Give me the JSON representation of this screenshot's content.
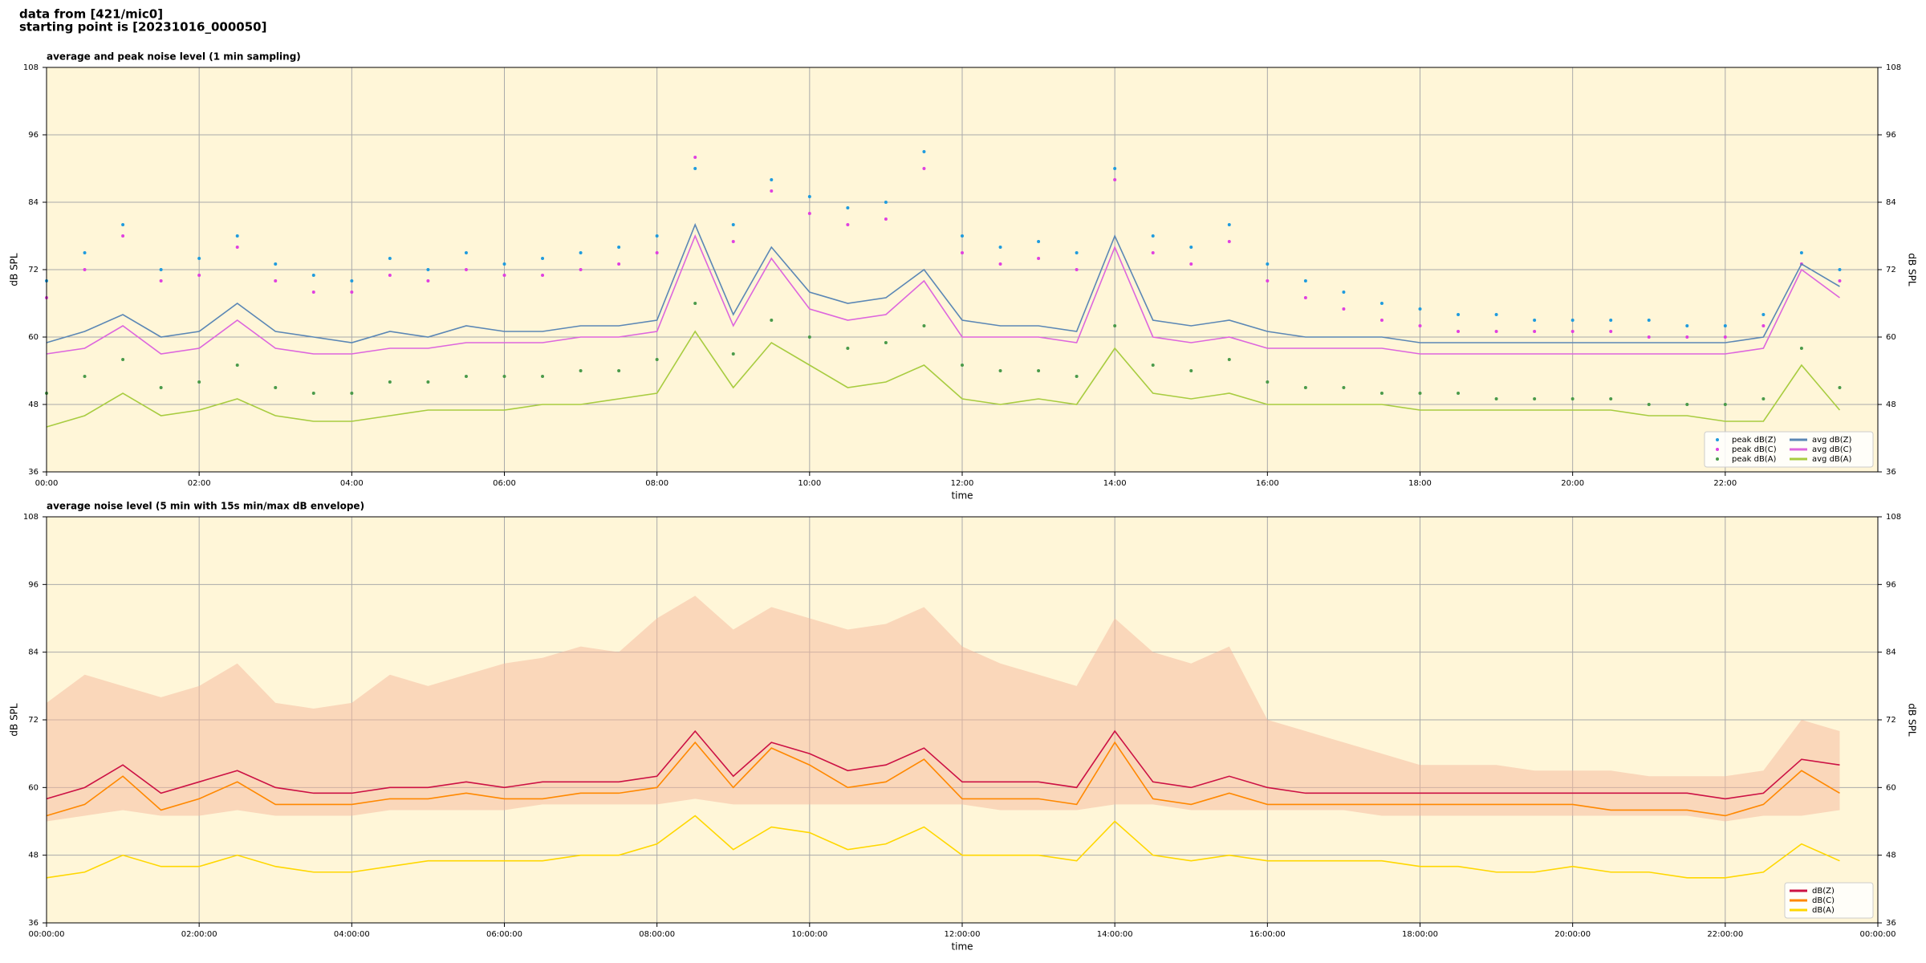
{
  "header": {
    "line1": "data from [421/mic0]",
    "line2": "starting point is [20231016_000050]"
  },
  "chart_data": [
    {
      "type": "line",
      "title": "average and peak noise level (1 min sampling)",
      "xlabel": "time",
      "ylabel": "dB SPL",
      "legend": "lower right",
      "grid": true,
      "background": "#fff6d8",
      "xlim": [
        0,
        24
      ],
      "ylim": [
        36,
        108
      ],
      "yticks": [
        36,
        48,
        60,
        72,
        84,
        96,
        108
      ],
      "xticks": [
        {
          "value": 0,
          "label": "00:00"
        },
        {
          "value": 2,
          "label": "02:00"
        },
        {
          "value": 4,
          "label": "04:00"
        },
        {
          "value": 6,
          "label": "06:00"
        },
        {
          "value": 8,
          "label": "08:00"
        },
        {
          "value": 10,
          "label": "10:00"
        },
        {
          "value": 12,
          "label": "12:00"
        },
        {
          "value": 14,
          "label": "14:00"
        },
        {
          "value": 16,
          "label": "16:00"
        },
        {
          "value": 18,
          "label": "18:00"
        },
        {
          "value": 20,
          "label": "20:00"
        },
        {
          "value": 22,
          "label": "22:00"
        }
      ],
      "x": [
        0,
        0.5,
        1,
        1.5,
        2,
        2.5,
        3,
        3.5,
        4,
        4.5,
        5,
        5.5,
        6,
        6.5,
        7,
        7.5,
        8,
        8.5,
        9,
        9.5,
        10,
        10.5,
        11,
        11.5,
        12,
        12.5,
        13,
        13.5,
        14,
        14.5,
        15,
        15.5,
        16,
        16.5,
        17,
        17.5,
        18,
        18.5,
        19,
        19.5,
        20,
        20.5,
        21,
        21.5,
        22,
        22.5,
        23,
        23.5
      ],
      "series": [
        {
          "name": "peak dB(Z)",
          "kind": "scatter",
          "color": "#1f9bde",
          "values": [
            70,
            75,
            80,
            72,
            74,
            78,
            73,
            71,
            70,
            74,
            72,
            75,
            73,
            74,
            75,
            76,
            78,
            90,
            80,
            88,
            85,
            83,
            84,
            93,
            78,
            76,
            77,
            75,
            90,
            78,
            76,
            80,
            73,
            70,
            68,
            66,
            65,
            64,
            64,
            63,
            63,
            63,
            63,
            62,
            62,
            64,
            75,
            72
          ]
        },
        {
          "name": "peak dB(C)",
          "kind": "scatter",
          "color": "#e040e0",
          "values": [
            67,
            72,
            78,
            70,
            71,
            76,
            70,
            68,
            68,
            71,
            70,
            72,
            71,
            71,
            72,
            73,
            75,
            92,
            77,
            86,
            82,
            80,
            81,
            90,
            75,
            73,
            74,
            72,
            88,
            75,
            73,
            77,
            70,
            67,
            65,
            63,
            62,
            61,
            61,
            61,
            61,
            61,
            60,
            60,
            60,
            62,
            73,
            70
          ]
        },
        {
          "name": "peak dB(A)",
          "kind": "scatter",
          "color": "#4a9a4a",
          "values": [
            50,
            53,
            56,
            51,
            52,
            55,
            51,
            50,
            50,
            52,
            52,
            53,
            53,
            53,
            54,
            54,
            56,
            66,
            57,
            63,
            60,
            58,
            59,
            62,
            55,
            54,
            54,
            53,
            62,
            55,
            54,
            56,
            52,
            51,
            51,
            50,
            50,
            50,
            49,
            49,
            49,
            49,
            48,
            48,
            48,
            49,
            58,
            51
          ]
        },
        {
          "name": "avg dB(Z)",
          "kind": "line",
          "color": "#5b87b5",
          "values": [
            59,
            61,
            64,
            60,
            61,
            66,
            61,
            60,
            59,
            61,
            60,
            62,
            61,
            61,
            62,
            62,
            63,
            80,
            64,
            76,
            68,
            66,
            67,
            72,
            63,
            62,
            62,
            61,
            78,
            63,
            62,
            63,
            61,
            60,
            60,
            60,
            59,
            59,
            59,
            59,
            59,
            59,
            59,
            59,
            59,
            60,
            73,
            69
          ]
        },
        {
          "name": "avg dB(C)",
          "kind": "line",
          "color": "#dd66dd",
          "values": [
            57,
            58,
            62,
            57,
            58,
            63,
            58,
            57,
            57,
            58,
            58,
            59,
            59,
            59,
            60,
            60,
            61,
            78,
            62,
            74,
            65,
            63,
            64,
            70,
            60,
            60,
            60,
            59,
            76,
            60,
            59,
            60,
            58,
            58,
            58,
            58,
            57,
            57,
            57,
            57,
            57,
            57,
            57,
            57,
            57,
            58,
            72,
            67
          ]
        },
        {
          "name": "avg dB(A)",
          "kind": "line",
          "color": "#a8cc40",
          "values": [
            44,
            46,
            50,
            46,
            47,
            49,
            46,
            45,
            45,
            46,
            47,
            47,
            47,
            48,
            48,
            49,
            50,
            61,
            51,
            59,
            55,
            51,
            52,
            55,
            49,
            48,
            49,
            48,
            58,
            50,
            49,
            50,
            48,
            48,
            48,
            48,
            47,
            47,
            47,
            47,
            47,
            47,
            46,
            46,
            45,
            45,
            55,
            47
          ]
        }
      ]
    },
    {
      "type": "line",
      "title": "average noise level (5 min with 15s min/max dB envelope)",
      "xlabel": "time",
      "ylabel": "dB SPL",
      "legend": "lower right",
      "grid": true,
      "background": "#fff6d8",
      "xlim": [
        0,
        24
      ],
      "ylim": [
        36,
        108
      ],
      "yticks": [
        36,
        48,
        60,
        72,
        84,
        96,
        108
      ],
      "xticks": [
        {
          "value": 0,
          "label": "00:00:00"
        },
        {
          "value": 2,
          "label": "02:00:00"
        },
        {
          "value": 4,
          "label": "04:00:00"
        },
        {
          "value": 6,
          "label": "06:00:00"
        },
        {
          "value": 8,
          "label": "08:00:00"
        },
        {
          "value": 10,
          "label": "10:00:00"
        },
        {
          "value": 12,
          "label": "12:00:00"
        },
        {
          "value": 14,
          "label": "14:00:00"
        },
        {
          "value": 16,
          "label": "16:00:00"
        },
        {
          "value": 18,
          "label": "18:00:00"
        },
        {
          "value": 20,
          "label": "20:00:00"
        },
        {
          "value": 22,
          "label": "22:00:00"
        },
        {
          "value": 24,
          "label": "00:00:00"
        }
      ],
      "x": [
        0,
        0.5,
        1,
        1.5,
        2,
        2.5,
        3,
        3.5,
        4,
        4.5,
        5,
        5.5,
        6,
        6.5,
        7,
        7.5,
        8,
        8.5,
        9,
        9.5,
        10,
        10.5,
        11,
        11.5,
        12,
        12.5,
        13,
        13.5,
        14,
        14.5,
        15,
        15.5,
        16,
        16.5,
        17,
        17.5,
        18,
        18.5,
        19,
        19.5,
        20,
        20.5,
        21,
        21.5,
        22,
        22.5,
        23,
        23.5
      ],
      "envelope": {
        "color": "#f5b89c",
        "low": [
          54,
          55,
          56,
          55,
          55,
          56,
          55,
          55,
          55,
          56,
          56,
          56,
          56,
          57,
          57,
          57,
          57,
          58,
          57,
          57,
          57,
          57,
          57,
          57,
          57,
          56,
          56,
          56,
          57,
          57,
          56,
          56,
          56,
          56,
          56,
          55,
          55,
          55,
          55,
          55,
          55,
          55,
          55,
          55,
          54,
          55,
          55,
          56
        ],
        "high": [
          75,
          80,
          78,
          76,
          78,
          82,
          75,
          74,
          75,
          80,
          78,
          80,
          82,
          83,
          85,
          84,
          90,
          94,
          88,
          92,
          90,
          88,
          89,
          92,
          85,
          82,
          80,
          78,
          90,
          84,
          82,
          85,
          72,
          70,
          68,
          66,
          64,
          64,
          64,
          63,
          63,
          63,
          62,
          62,
          62,
          63,
          72,
          70
        ]
      },
      "series": [
        {
          "name": "dB(Z)",
          "kind": "line",
          "color": "#cc1144",
          "values": [
            58,
            60,
            64,
            59,
            61,
            63,
            60,
            59,
            59,
            60,
            60,
            61,
            60,
            61,
            61,
            61,
            62,
            70,
            62,
            68,
            66,
            63,
            64,
            67,
            61,
            61,
            61,
            60,
            70,
            61,
            60,
            62,
            60,
            59,
            59,
            59,
            59,
            59,
            59,
            59,
            59,
            59,
            59,
            59,
            58,
            59,
            65,
            64
          ]
        },
        {
          "name": "dB(C)",
          "kind": "line",
          "color": "#ff8800",
          "values": [
            55,
            57,
            62,
            56,
            58,
            61,
            57,
            57,
            57,
            58,
            58,
            59,
            58,
            58,
            59,
            59,
            60,
            68,
            60,
            67,
            64,
            60,
            61,
            65,
            58,
            58,
            58,
            57,
            68,
            58,
            57,
            59,
            57,
            57,
            57,
            57,
            57,
            57,
            57,
            57,
            57,
            56,
            56,
            56,
            55,
            57,
            63,
            59
          ]
        },
        {
          "name": "dB(A)",
          "kind": "line",
          "color": "#ffd700",
          "values": [
            44,
            45,
            48,
            46,
            46,
            48,
            46,
            45,
            45,
            46,
            47,
            47,
            47,
            47,
            48,
            48,
            50,
            55,
            49,
            53,
            52,
            49,
            50,
            53,
            48,
            48,
            48,
            47,
            54,
            48,
            47,
            48,
            47,
            47,
            47,
            47,
            46,
            46,
            45,
            45,
            46,
            45,
            45,
            44,
            44,
            45,
            50,
            47
          ]
        }
      ]
    }
  ]
}
